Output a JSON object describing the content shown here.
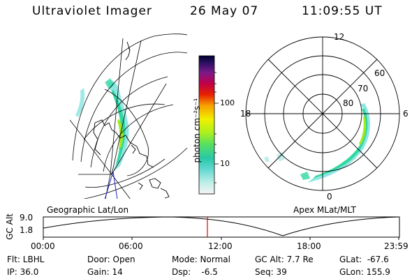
{
  "header": {
    "instrument": "Ultraviolet Imager",
    "date": "26 May 07",
    "time": "11:09:55 UT"
  },
  "colorbar": {
    "unit_label": "photon cm⁻²s⁻¹",
    "ticks": [
      "100",
      "10"
    ]
  },
  "polar_plot": {
    "mlt_labels": [
      "12",
      "18",
      "6",
      "0"
    ],
    "mlat_labels": [
      "60",
      "70",
      "80"
    ]
  },
  "map_labels": {
    "left": "Geographic Lat/Lon",
    "right": "Apex MLat/MLT"
  },
  "altitude_plot": {
    "ylabel": "GC Alt",
    "yticks": [
      "9.0",
      "1.8"
    ],
    "xticks": [
      "00:00",
      "06:00",
      "12:00",
      "18:00",
      "23:59"
    ],
    "current_time_marker": "11:09:55"
  },
  "status": {
    "filter": "Flt: LBHL",
    "ip": "IP: 36.0",
    "door": "Door: Open",
    "gain": "Gain: 14",
    "mode": "Mode: Normal",
    "dsp": "Dsp:    -6.5",
    "gc_alt": "GC Alt: 7.7 Re",
    "seq": "Seq: 39",
    "glat": "GLat:  -67.6",
    "glon": "GLon: 155.9"
  },
  "colors": {
    "aurora_low": "#7fe3e0",
    "aurora_mid": "#30d8a0",
    "aurora_high": "#a6e81e",
    "time_marker": "#e00000"
  }
}
